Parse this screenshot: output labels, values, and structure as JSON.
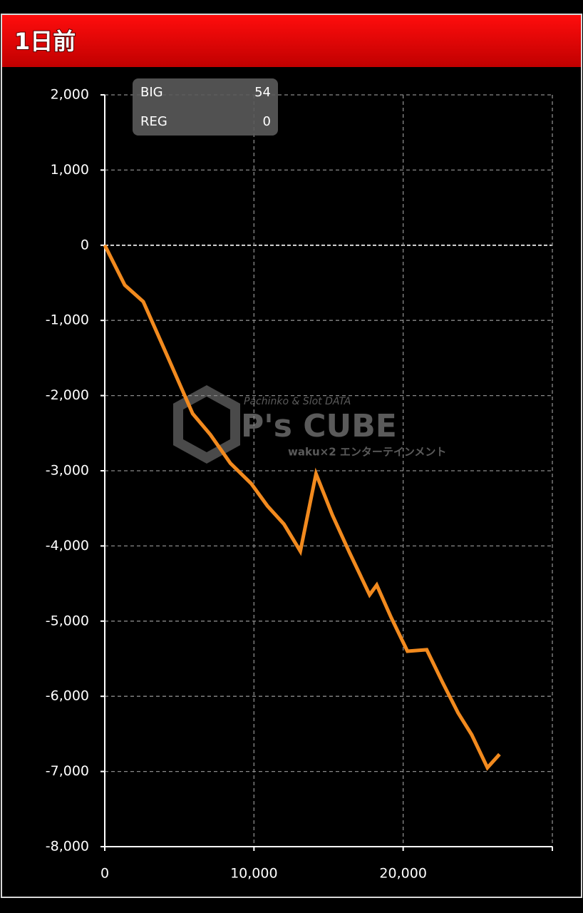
{
  "header": {
    "title": "1日前"
  },
  "summary": [
    {
      "label": "BIG",
      "value": 54
    },
    {
      "label": "REG",
      "value": 0
    }
  ],
  "watermark": {
    "tagline": "Pachinko & Slot DATA",
    "brand": "P's CUBE",
    "slogan": "waku×2 エンターテインメント"
  },
  "chart_data": {
    "type": "line",
    "color": "#f28a1e",
    "x": [
      0,
      1340,
      2580,
      4210,
      5890,
      7080,
      8420,
      9810,
      10910,
      12010,
      13110,
      14160,
      15260,
      16410,
      17750,
      18230,
      19190,
      20290,
      21580,
      22630,
      23680,
      24590,
      25650,
      26460
    ],
    "values": [
      0,
      -530,
      -750,
      -1480,
      -2240,
      -2520,
      -2900,
      -3170,
      -3470,
      -3710,
      -4070,
      -3040,
      -3590,
      -4090,
      -4650,
      -4520,
      -4950,
      -5400,
      -5380,
      -5810,
      -6220,
      -6510,
      -6950,
      -6770
    ],
    "xlim": [
      0,
      30000
    ],
    "xticks": [
      0,
      {
        "value": 10000,
        "label": "10,000"
      },
      {
        "value": 20000,
        "label": "20,000"
      }
    ],
    "ylim": [
      -8000,
      2000
    ],
    "yticks": [
      {
        "value": 2000,
        "label": "2,000"
      },
      {
        "value": 1000,
        "label": "1,000"
      },
      0,
      {
        "value": -1000,
        "label": "-1,000"
      },
      {
        "value": -2000,
        "label": "-2,000"
      },
      {
        "value": -3000,
        "label": "-3,000"
      },
      {
        "value": -4000,
        "label": "-4,000"
      },
      {
        "value": -5000,
        "label": "-5,000"
      },
      {
        "value": -6000,
        "label": "-6,000"
      },
      {
        "value": -7000,
        "label": "-7,000"
      },
      {
        "value": -8000,
        "label": "-8,000"
      }
    ],
    "grid": true
  }
}
